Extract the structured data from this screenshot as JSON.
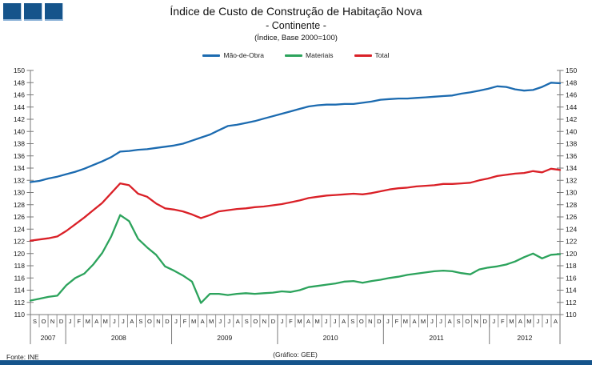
{
  "header": {
    "title": "Índice de Custo de Construção de Habitação Nova",
    "subtitle": "- Continente -",
    "subsubtitle": "(Índice, Base 2000=100)"
  },
  "legend": [
    {
      "label": "Mão-de-Obra",
      "color": "#1c6bb0"
    },
    {
      "label": "Materiais",
      "color": "#2ca35c"
    },
    {
      "label": "Total",
      "color": "#da2128"
    }
  ],
  "footer": {
    "source": "Fonte: INE",
    "credit": "(Gráfico: GEE)"
  },
  "colors": {
    "navy": "#15548b",
    "axis": "#7a7a7a",
    "accent_blue": "#1c6bb0",
    "accent_green": "#2ca35c",
    "accent_red": "#da2128"
  },
  "chart_data": {
    "type": "line",
    "title": "Índice de Custo de Construção de Habitação Nova - Continente (Índice, Base 2000=100)",
    "ylim": [
      110,
      150
    ],
    "ytick_step": 2,
    "grid": false,
    "legend_position": "top",
    "x_months": [
      "S",
      "O",
      "N",
      "D",
      "J",
      "F",
      "M",
      "A",
      "M",
      "J",
      "J",
      "A",
      "S",
      "O",
      "N",
      "D",
      "J",
      "F",
      "M",
      "A",
      "M",
      "J",
      "J",
      "A",
      "S",
      "O",
      "N",
      "D",
      "J",
      "F",
      "M",
      "A",
      "M",
      "J",
      "J",
      "A",
      "S",
      "O",
      "N",
      "D",
      "J",
      "F",
      "M",
      "A",
      "M",
      "J",
      "J",
      "A",
      "S",
      "O",
      "N",
      "D",
      "J",
      "F",
      "M",
      "A",
      "M",
      "J",
      "J",
      "A"
    ],
    "year_spans": [
      {
        "label": "2007",
        "from": 0,
        "to": 4
      },
      {
        "label": "2008",
        "from": 4,
        "to": 16
      },
      {
        "label": "2009",
        "from": 16,
        "to": 28
      },
      {
        "label": "2010",
        "from": 28,
        "to": 40
      },
      {
        "label": "2011",
        "from": 40,
        "to": 52
      },
      {
        "label": "2012",
        "from": 52,
        "to": 60
      }
    ],
    "series": [
      {
        "name": "Mão-de-Obra",
        "color": "#1c6bb0",
        "values": [
          131.7,
          131.9,
          132.3,
          132.6,
          133.0,
          133.4,
          133.9,
          134.5,
          135.1,
          135.8,
          136.7,
          136.8,
          137.0,
          137.1,
          137.3,
          137.5,
          137.7,
          138.0,
          138.5,
          139.0,
          139.5,
          140.2,
          140.9,
          141.1,
          141.4,
          141.7,
          142.1,
          142.5,
          142.9,
          143.3,
          143.7,
          144.1,
          144.3,
          144.4,
          144.4,
          144.5,
          144.5,
          144.7,
          144.9,
          145.2,
          145.3,
          145.4,
          145.4,
          145.5,
          145.6,
          145.7,
          145.8,
          145.9,
          146.2,
          146.4,
          146.7,
          147.0,
          147.4,
          147.3,
          146.9,
          146.7,
          146.8,
          147.3,
          148.0,
          147.9
        ]
      },
      {
        "name": "Materiais",
        "color": "#2ca35c",
        "values": [
          112.3,
          112.6,
          112.9,
          113.1,
          114.8,
          116.0,
          116.7,
          118.2,
          120.1,
          122.8,
          126.3,
          125.3,
          122.4,
          121.0,
          119.8,
          117.9,
          117.2,
          116.4,
          115.4,
          111.9,
          113.4,
          113.4,
          113.2,
          113.4,
          113.5,
          113.4,
          113.5,
          113.6,
          113.8,
          113.7,
          114.0,
          114.5,
          114.7,
          114.9,
          115.1,
          115.4,
          115.5,
          115.2,
          115.5,
          115.7,
          116.0,
          116.2,
          116.5,
          116.7,
          116.9,
          117.1,
          117.2,
          117.1,
          116.8,
          116.6,
          117.4,
          117.7,
          117.9,
          118.2,
          118.7,
          119.4,
          120.0,
          119.2,
          119.8,
          119.9
        ]
      },
      {
        "name": "Total",
        "color": "#da2128",
        "values": [
          122.1,
          122.3,
          122.5,
          122.8,
          123.7,
          124.8,
          125.9,
          127.1,
          128.3,
          129.9,
          131.5,
          131.2,
          129.8,
          129.3,
          128.2,
          127.4,
          127.2,
          126.9,
          126.4,
          125.8,
          126.3,
          126.9,
          127.1,
          127.3,
          127.4,
          127.6,
          127.7,
          127.9,
          128.1,
          128.4,
          128.7,
          129.1,
          129.3,
          129.5,
          129.6,
          129.7,
          129.8,
          129.7,
          129.9,
          130.2,
          130.5,
          130.7,
          130.8,
          131.0,
          131.1,
          131.2,
          131.4,
          131.4,
          131.5,
          131.6,
          132.0,
          132.3,
          132.7,
          132.9,
          133.1,
          133.2,
          133.5,
          133.3,
          133.9,
          133.7
        ]
      }
    ]
  }
}
